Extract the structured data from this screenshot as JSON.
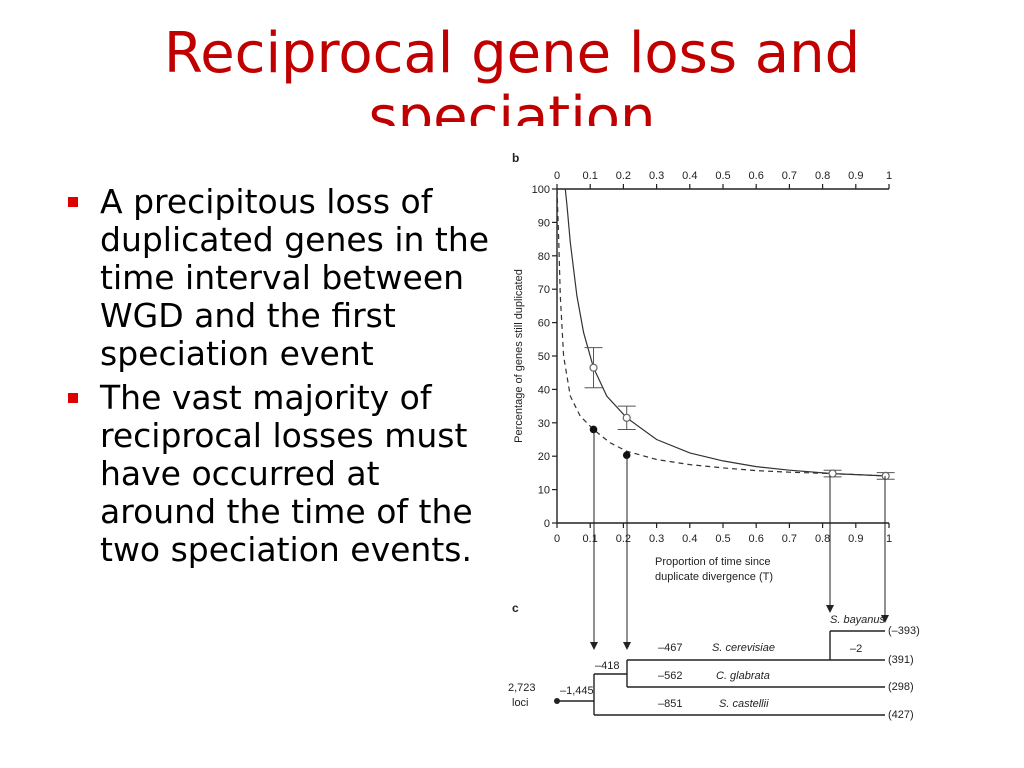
{
  "slide": {
    "title_line1": "Reciprocal gene loss and",
    "title_line2": "speciation",
    "bullets": [
      "A precipitous loss of duplicated genes in the time interval between WGD and the first speciation event",
      "The vast majority of reciprocal losses must have occurred at around the time of the two speciation events."
    ]
  },
  "figure": {
    "panel_b_label": "b",
    "panel_c_label": "c",
    "top_ticks": [
      "0",
      "0.1",
      "0.2",
      "0.3",
      "0.4",
      "0.5",
      "0.6",
      "0.7",
      "0.8",
      "0.9",
      "1"
    ],
    "bottom_ticks": [
      "0",
      "0.1",
      "0.2",
      "0.3",
      "0.4",
      "0.5",
      "0.6",
      "0.7",
      "0.8",
      "0.9",
      "1"
    ],
    "y_ticks": [
      "0",
      "10",
      "20",
      "30",
      "40",
      "50",
      "60",
      "70",
      "80",
      "90",
      "100"
    ],
    "ylabel": "Percentage of genes still duplicated",
    "xlabel_line1": "Proportion of time since",
    "xlabel_line2": "duplicate divergence (T)",
    "tree": {
      "root_loci": "2,723",
      "root_loci_label": "loci",
      "root_loss": "–1,445",
      "node1_loss": "–418",
      "node2_loss": "–2",
      "species": [
        {
          "name": "S. bayanus",
          "loss": "",
          "count": "(–393)"
        },
        {
          "name": "S. cerevisiae",
          "loss": "–467",
          "count": "(391)"
        },
        {
          "name": "C. glabrata",
          "loss": "–562",
          "count": "(298)"
        },
        {
          "name": "S. castellii",
          "loss": "–851",
          "count": "(427)"
        }
      ]
    }
  },
  "chart_data": {
    "type": "scatter",
    "xlim": [
      0,
      1
    ],
    "ylim": [
      0,
      100
    ],
    "ylabel": "Percentage of genes still duplicated",
    "xlabel": "Proportion of time since duplicate divergence (T)",
    "x_ticks": [
      0,
      0.1,
      0.2,
      0.3,
      0.4,
      0.5,
      0.6,
      0.7,
      0.8,
      0.9,
      1
    ],
    "y_ticks": [
      0,
      10,
      20,
      30,
      40,
      50,
      60,
      70,
      80,
      90,
      100
    ],
    "series": [
      {
        "marker": "open",
        "points": [
          {
            "x": 0.11,
            "y": 46.5,
            "err": 6
          },
          {
            "x": 0.21,
            "y": 31.5,
            "err": 3.5
          },
          {
            "x": 0.83,
            "y": 14.8,
            "err": 1
          },
          {
            "x": 0.99,
            "y": 14.1,
            "err": 1
          }
        ]
      },
      {
        "marker": "filled",
        "points": [
          {
            "x": 0.11,
            "y": 28
          },
          {
            "x": 0.21,
            "y": 20.3
          }
        ]
      }
    ],
    "curves": [
      {
        "style": "solid",
        "points": [
          [
            0.025,
            100
          ],
          [
            0.03,
            95
          ],
          [
            0.04,
            84
          ],
          [
            0.06,
            68
          ],
          [
            0.08,
            57
          ],
          [
            0.11,
            46.5
          ],
          [
            0.15,
            38
          ],
          [
            0.21,
            31.5
          ],
          [
            0.3,
            25
          ],
          [
            0.4,
            21
          ],
          [
            0.5,
            18.6
          ],
          [
            0.6,
            16.9
          ],
          [
            0.7,
            15.8
          ],
          [
            0.83,
            14.8
          ],
          [
            0.99,
            14.1
          ]
        ]
      },
      {
        "style": "dashed",
        "points": [
          [
            0,
            100
          ],
          [
            0.005,
            85
          ],
          [
            0.01,
            68
          ],
          [
            0.02,
            50
          ],
          [
            0.04,
            38
          ],
          [
            0.07,
            32
          ],
          [
            0.11,
            28
          ],
          [
            0.16,
            24
          ],
          [
            0.21,
            21.5
          ],
          [
            0.3,
            19
          ],
          [
            0.4,
            17.5
          ],
          [
            0.5,
            16.5
          ],
          [
            0.6,
            15.7
          ],
          [
            0.7,
            15.2
          ],
          [
            0.83,
            14.8
          ],
          [
            0.99,
            14.1
          ]
        ]
      }
    ]
  }
}
